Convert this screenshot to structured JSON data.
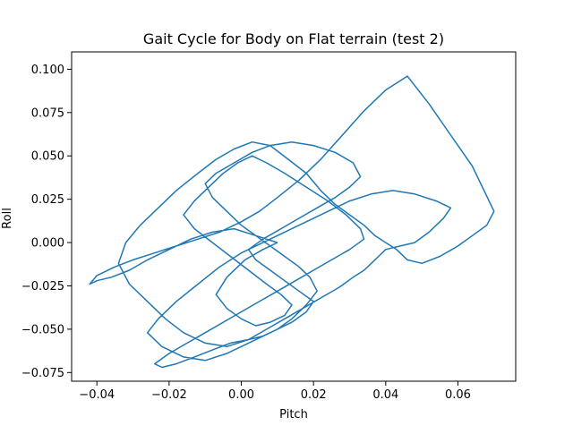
{
  "chart_data": {
    "type": "line",
    "title": "Gait Cycle for Body on Flat terrain (test 2)",
    "xlabel": "Pitch",
    "ylabel": "Roll",
    "xlim": [
      -0.047,
      0.076
    ],
    "ylim": [
      -0.08,
      0.11
    ],
    "xticks": [
      -0.04,
      -0.02,
      0.0,
      0.02,
      0.04,
      0.06
    ],
    "xtick_labels": [
      "−0.04",
      "−0.02",
      "0.00",
      "0.02",
      "0.04",
      "0.06"
    ],
    "yticks": [
      -0.075,
      -0.05,
      -0.025,
      0.0,
      0.025,
      0.05,
      0.075,
      0.1
    ],
    "ytick_labels": [
      "−0.075",
      "−0.050",
      "−0.025",
      "0.000",
      "0.025",
      "0.050",
      "0.075",
      "0.100"
    ],
    "grid": false,
    "series": [
      {
        "color": "#1f77b4",
        "x": [
          0.01,
          0.004,
          -0.002,
          -0.008,
          -0.014,
          -0.02,
          -0.026,
          -0.031,
          -0.036,
          -0.04,
          -0.042,
          -0.04,
          -0.035,
          -0.03,
          -0.024,
          -0.018,
          -0.012,
          -0.006,
          0.0,
          0.005,
          0.01,
          0.016,
          0.022,
          0.028,
          0.034,
          0.04,
          0.046,
          0.052,
          0.058,
          0.064,
          0.07,
          0.068,
          0.064,
          0.06,
          0.055,
          0.05,
          0.046,
          0.043,
          0.04,
          0.037,
          0.034,
          0.03,
          0.026,
          0.022,
          0.018,
          0.013,
          0.008,
          0.003,
          -0.002,
          -0.007,
          -0.012,
          -0.018,
          -0.023,
          -0.028,
          -0.032,
          -0.034,
          -0.031,
          -0.026,
          -0.021,
          -0.016,
          -0.01,
          -0.004,
          0.002,
          0.007,
          0.012,
          0.017,
          0.022,
          0.027,
          0.031,
          0.034,
          0.036,
          0.038,
          0.04,
          0.044,
          0.048,
          0.052,
          0.056,
          0.058,
          0.054,
          0.048,
          0.042,
          0.036,
          0.03,
          0.024,
          0.018,
          0.012,
          0.006,
          0.0,
          -0.006,
          -0.012,
          -0.018,
          -0.023,
          -0.026,
          -0.022,
          -0.016,
          -0.01,
          -0.004,
          0.002,
          0.008,
          0.014,
          0.018,
          0.02,
          0.016,
          0.012,
          0.008,
          0.004,
          0.002,
          0.006,
          0.011,
          0.016,
          0.021,
          0.026,
          0.03,
          0.033,
          0.031,
          0.026,
          0.02,
          0.014,
          0.008,
          0.003,
          -0.002,
          -0.007,
          -0.01,
          -0.008,
          -0.004,
          0.0,
          0.004,
          0.008,
          0.012,
          0.016,
          0.019,
          0.021,
          0.018,
          0.014,
          0.01,
          0.006,
          0.002,
          -0.003,
          -0.008,
          -0.013,
          -0.018,
          -0.022,
          -0.024,
          -0.02,
          -0.015,
          -0.01,
          -0.005,
          0.0,
          0.005,
          0.01,
          0.015,
          0.02,
          0.025,
          0.03,
          0.034,
          0.033,
          0.029,
          0.024,
          0.018,
          0.012,
          0.007,
          0.003,
          -0.001,
          -0.005,
          -0.009,
          -0.013,
          -0.016,
          -0.013,
          -0.008,
          -0.003,
          0.002,
          0.007,
          0.011,
          0.014,
          0.012,
          0.008,
          0.004,
          0.0,
          -0.004,
          -0.007,
          -0.004,
          0.001,
          0.006,
          0.01
        ],
        "y": [
          0.0,
          0.004,
          0.008,
          0.006,
          0.002,
          -0.004,
          -0.01,
          -0.016,
          -0.02,
          -0.022,
          -0.024,
          -0.019,
          -0.014,
          -0.01,
          -0.006,
          -0.002,
          0.002,
          0.006,
          0.012,
          0.018,
          0.026,
          0.036,
          0.048,
          0.062,
          0.076,
          0.088,
          0.096,
          0.08,
          0.062,
          0.044,
          0.018,
          0.01,
          0.004,
          -0.002,
          -0.008,
          -0.012,
          -0.01,
          -0.004,
          0.0,
          0.004,
          0.01,
          0.016,
          0.022,
          0.03,
          0.04,
          0.048,
          0.056,
          0.058,
          0.054,
          0.048,
          0.04,
          0.03,
          0.02,
          0.01,
          0.0,
          -0.012,
          -0.024,
          -0.034,
          -0.044,
          -0.052,
          -0.058,
          -0.06,
          -0.056,
          -0.05,
          -0.044,
          -0.038,
          -0.032,
          -0.026,
          -0.02,
          -0.016,
          -0.012,
          -0.008,
          -0.004,
          -0.002,
          0.0,
          0.006,
          0.014,
          0.02,
          0.024,
          0.028,
          0.03,
          0.028,
          0.024,
          0.018,
          0.012,
          0.006,
          0.0,
          -0.006,
          -0.014,
          -0.024,
          -0.034,
          -0.044,
          -0.052,
          -0.06,
          -0.066,
          -0.068,
          -0.064,
          -0.058,
          -0.052,
          -0.046,
          -0.04,
          -0.034,
          -0.028,
          -0.022,
          -0.016,
          -0.01,
          -0.004,
          0.002,
          0.008,
          0.014,
          0.02,
          0.026,
          0.032,
          0.038,
          0.046,
          0.052,
          0.056,
          0.058,
          0.056,
          0.052,
          0.046,
          0.04,
          0.034,
          0.026,
          0.018,
          0.01,
          0.004,
          -0.002,
          -0.008,
          -0.014,
          -0.02,
          -0.028,
          -0.036,
          -0.044,
          -0.05,
          -0.054,
          -0.056,
          -0.058,
          -0.062,
          -0.066,
          -0.07,
          -0.072,
          -0.07,
          -0.064,
          -0.058,
          -0.052,
          -0.046,
          -0.04,
          -0.034,
          -0.028,
          -0.022,
          -0.016,
          -0.01,
          -0.004,
          0.002,
          0.008,
          0.016,
          0.024,
          0.032,
          0.04,
          0.046,
          0.05,
          0.046,
          0.04,
          0.032,
          0.024,
          0.016,
          0.008,
          0.0,
          -0.008,
          -0.016,
          -0.024,
          -0.03,
          -0.036,
          -0.042,
          -0.046,
          -0.048,
          -0.044,
          -0.038,
          -0.03,
          -0.02,
          -0.01,
          -0.004,
          0.0
        ]
      }
    ]
  }
}
